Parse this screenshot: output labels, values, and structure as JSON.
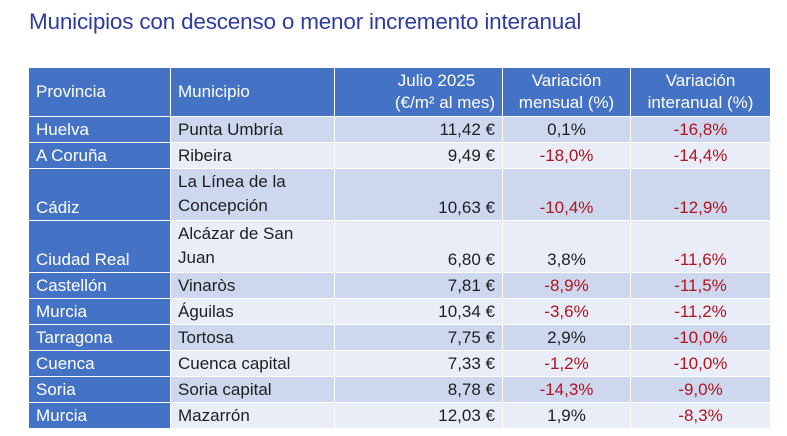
{
  "title": "Municipios con descenso o menor incremento interanual",
  "table": {
    "headers": {
      "provincia": "Provincia",
      "municipio": "Municipio",
      "precio_line1": "Julio 2025",
      "precio_line2": "(€/m² al mes)",
      "mensual_line1": "Variación",
      "mensual_line2": "mensual (%)",
      "interanual_line1": "Variación",
      "interanual_line2": "interanual (%)"
    },
    "rows": [
      {
        "provincia": "Huelva",
        "municipio": "Punta Umbría",
        "precio": "11,42 €",
        "mensual": "0,1%",
        "interanual": "-16,8%"
      },
      {
        "provincia": "A Coruña",
        "municipio": "Ribeira",
        "precio": "9,49 €",
        "mensual": "-18,0%",
        "interanual": "-14,4%"
      },
      {
        "provincia": "Cádiz",
        "municipio": "La Línea de la Concepción",
        "precio": "10,63 €",
        "mensual": "-10,4%",
        "interanual": "-12,9%"
      },
      {
        "provincia": "Ciudad Real",
        "municipio": "Alcázar de San Juan",
        "precio": "6,80 €",
        "mensual": "3,8%",
        "interanual": "-11,6%"
      },
      {
        "provincia": "Castellón",
        "municipio": "Vinaròs",
        "precio": "7,81 €",
        "mensual": "-8,9%",
        "interanual": "-11,5%"
      },
      {
        "provincia": "Murcia",
        "municipio": "Águilas",
        "precio": "10,34 €",
        "mensual": "-3,6%",
        "interanual": "-11,2%"
      },
      {
        "provincia": "Tarragona",
        "municipio": "Tortosa",
        "precio": "7,75 €",
        "mensual": "2,9%",
        "interanual": "-10,0%"
      },
      {
        "provincia": "Cuenca",
        "municipio": "Cuenca capital",
        "precio": "7,33 €",
        "mensual": "-1,2%",
        "interanual": "-10,0%"
      },
      {
        "provincia": "Soria",
        "municipio": "Soria capital",
        "precio": "8,78 €",
        "mensual": "-14,3%",
        "interanual": "-9,0%"
      },
      {
        "provincia": "Murcia",
        "municipio": "Mazarrón",
        "precio": "12,03 €",
        "mensual": "1,9%",
        "interanual": "-8,3%"
      }
    ]
  },
  "colors": {
    "title": "#2f3c9f",
    "header_bg": "#4472c4",
    "row_odd": "#cdd8ee",
    "row_even": "#e8edf7",
    "negative": "#b1141e"
  }
}
